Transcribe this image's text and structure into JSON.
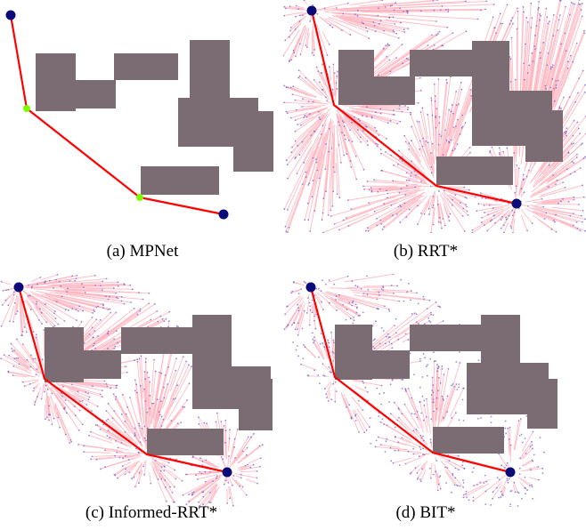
{
  "figure": {
    "panels": [
      {
        "id": "a",
        "caption": "(a) MPNet",
        "method": "MPNet",
        "tree": "none"
      },
      {
        "id": "b",
        "caption": "(b) RRT*",
        "method": "RRT*",
        "tree": "full"
      },
      {
        "id": "c",
        "caption": "(c) Informed-RRT*",
        "method": "Informed-RRT*",
        "tree": "ellipse"
      },
      {
        "id": "d",
        "caption": "(d) BIT*",
        "method": "BIT*",
        "tree": "ellipse-sparse"
      }
    ],
    "colors": {
      "obstacle": "#7b6b73",
      "path": "#ff0000",
      "endpoint": "#0a0a78",
      "waypoint": "#7cfc00",
      "tree_edge": "#ffb6c1",
      "tree_node": "#6a5acd"
    }
  }
}
